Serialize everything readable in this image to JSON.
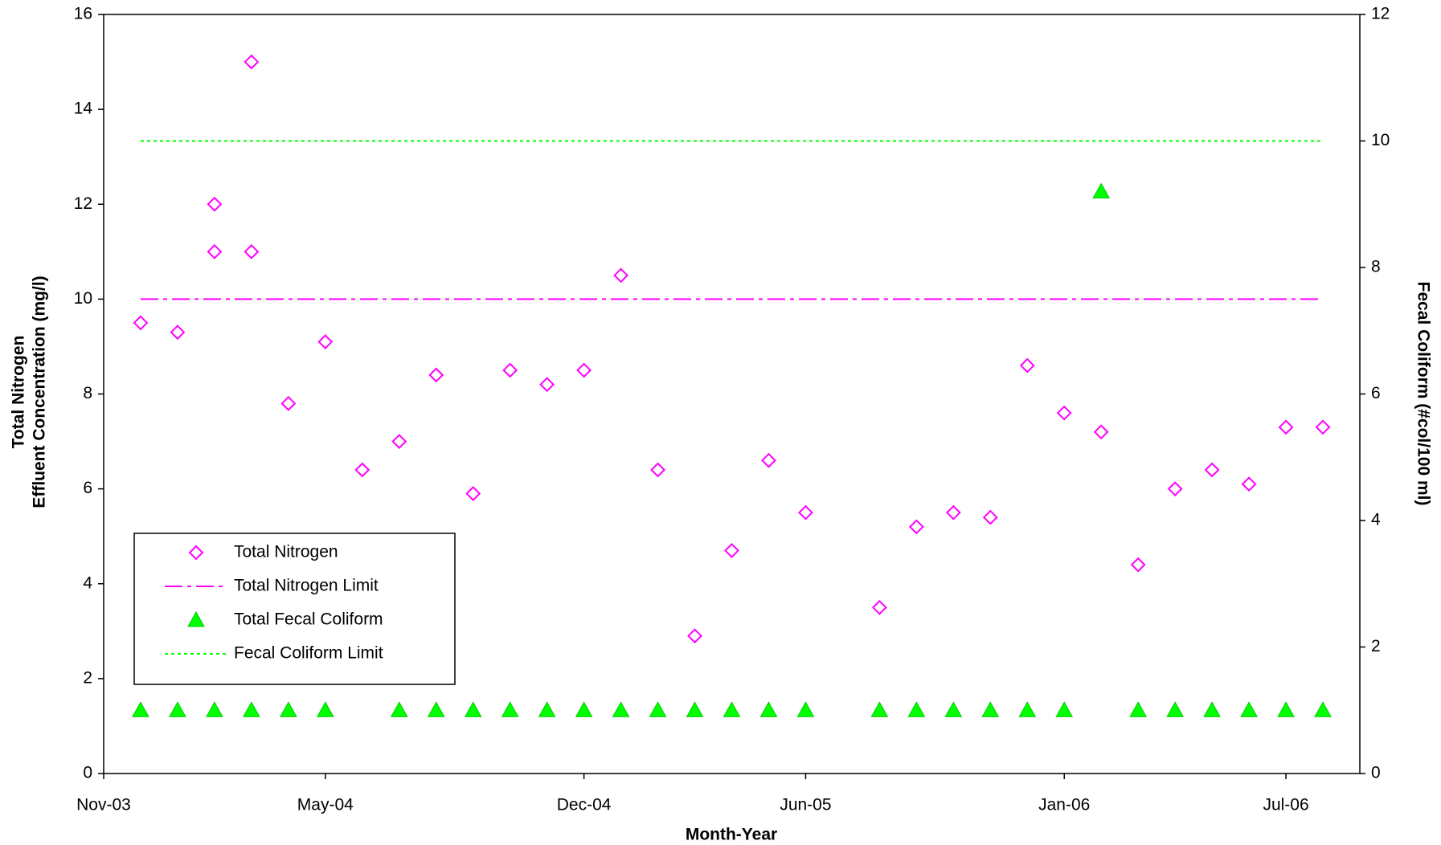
{
  "chart_data": {
    "type": "scatter",
    "x_label": "Month-Year",
    "y_label": [
      "Total Nitrogen",
      "Effluent Concentration (mg/l)"
    ],
    "y2_label": "Fecal Coliform (#col/100 ml)",
    "xlim": [
      "2003-11",
      "2006-09"
    ],
    "xticks": [
      {
        "value": "2003-11",
        "label": "Nov-03"
      },
      {
        "value": "2004-05",
        "label": "May-04"
      },
      {
        "value": "2004-12",
        "label": "Dec-04"
      },
      {
        "value": "2005-06",
        "label": "Jun-05"
      },
      {
        "value": "2006-01",
        "label": "Jan-06"
      },
      {
        "value": "2006-07",
        "label": "Jul-06"
      }
    ],
    "ylim": [
      0,
      16
    ],
    "yticks": [
      0,
      2,
      4,
      6,
      8,
      10,
      12,
      14,
      16
    ],
    "y2lim": [
      0,
      12
    ],
    "y2ticks": [
      0,
      2,
      4,
      6,
      8,
      10,
      12
    ],
    "legend": "lower left",
    "series": [
      {
        "name": "Total Nitrogen",
        "color": "#ff00ff",
        "marker": "diamond",
        "x": [
          "2003-12",
          "2004-01",
          "2004-02",
          "2004-02",
          "2004-03",
          "2004-03",
          "2004-04",
          "2004-05",
          "2004-06",
          "2004-07",
          "2004-08",
          "2004-09",
          "2004-10",
          "2004-11",
          "2004-12",
          "2005-01",
          "2005-02",
          "2005-03",
          "2005-04",
          "2005-05",
          "2005-06",
          "2005-08",
          "2005-09",
          "2005-10",
          "2005-11",
          "2005-12",
          "2006-01",
          "2006-02",
          "2006-03",
          "2006-04",
          "2006-05",
          "2006-06",
          "2006-07",
          "2006-08"
        ],
        "values": [
          9.5,
          9.3,
          12,
          11,
          15,
          11,
          7.8,
          9.1,
          6.4,
          7.0,
          8.4,
          5.9,
          8.5,
          8.2,
          8.5,
          10.5,
          6.4,
          2.9,
          4.7,
          6.6,
          5.5,
          3.5,
          5.2,
          5.5,
          5.4,
          8.6,
          7.6,
          7.2,
          4.4,
          6.0,
          6.4,
          6.1,
          7.3,
          7.3
        ]
      },
      {
        "name": "Total Nitrogen Limit",
        "color": "#ff00ff",
        "line": "dashdot",
        "x": [
          "2003-12",
          "2006-08"
        ],
        "values": [
          10,
          10
        ]
      },
      {
        "name": "Total Fecal Coliform",
        "color": "#00ff00",
        "marker": "triangle",
        "axis": "y2",
        "x": [
          "2003-12",
          "2004-01",
          "2004-02",
          "2004-03",
          "2004-04",
          "2004-05",
          "2004-07",
          "2004-08",
          "2004-09",
          "2004-10",
          "2004-11",
          "2004-12",
          "2005-01",
          "2005-02",
          "2005-03",
          "2005-04",
          "2005-05",
          "2005-06",
          "2005-08",
          "2005-09",
          "2005-10",
          "2005-11",
          "2005-12",
          "2006-01",
          "2006-02",
          "2006-03",
          "2006-04",
          "2006-05",
          "2006-06",
          "2006-07",
          "2006-08"
        ],
        "values": [
          1,
          1,
          1,
          1,
          1,
          1,
          1,
          1,
          1,
          1,
          1,
          1,
          1,
          1,
          1,
          1,
          1,
          1,
          1,
          1,
          1,
          1,
          1,
          1,
          9.2,
          1,
          1,
          1,
          1,
          1,
          1
        ]
      },
      {
        "name": "Fecal Coliform Limit",
        "color": "#00ff00",
        "line": "dot",
        "axis": "y2",
        "x": [
          "2003-12",
          "2006-08"
        ],
        "values": [
          10,
          10
        ]
      }
    ]
  }
}
